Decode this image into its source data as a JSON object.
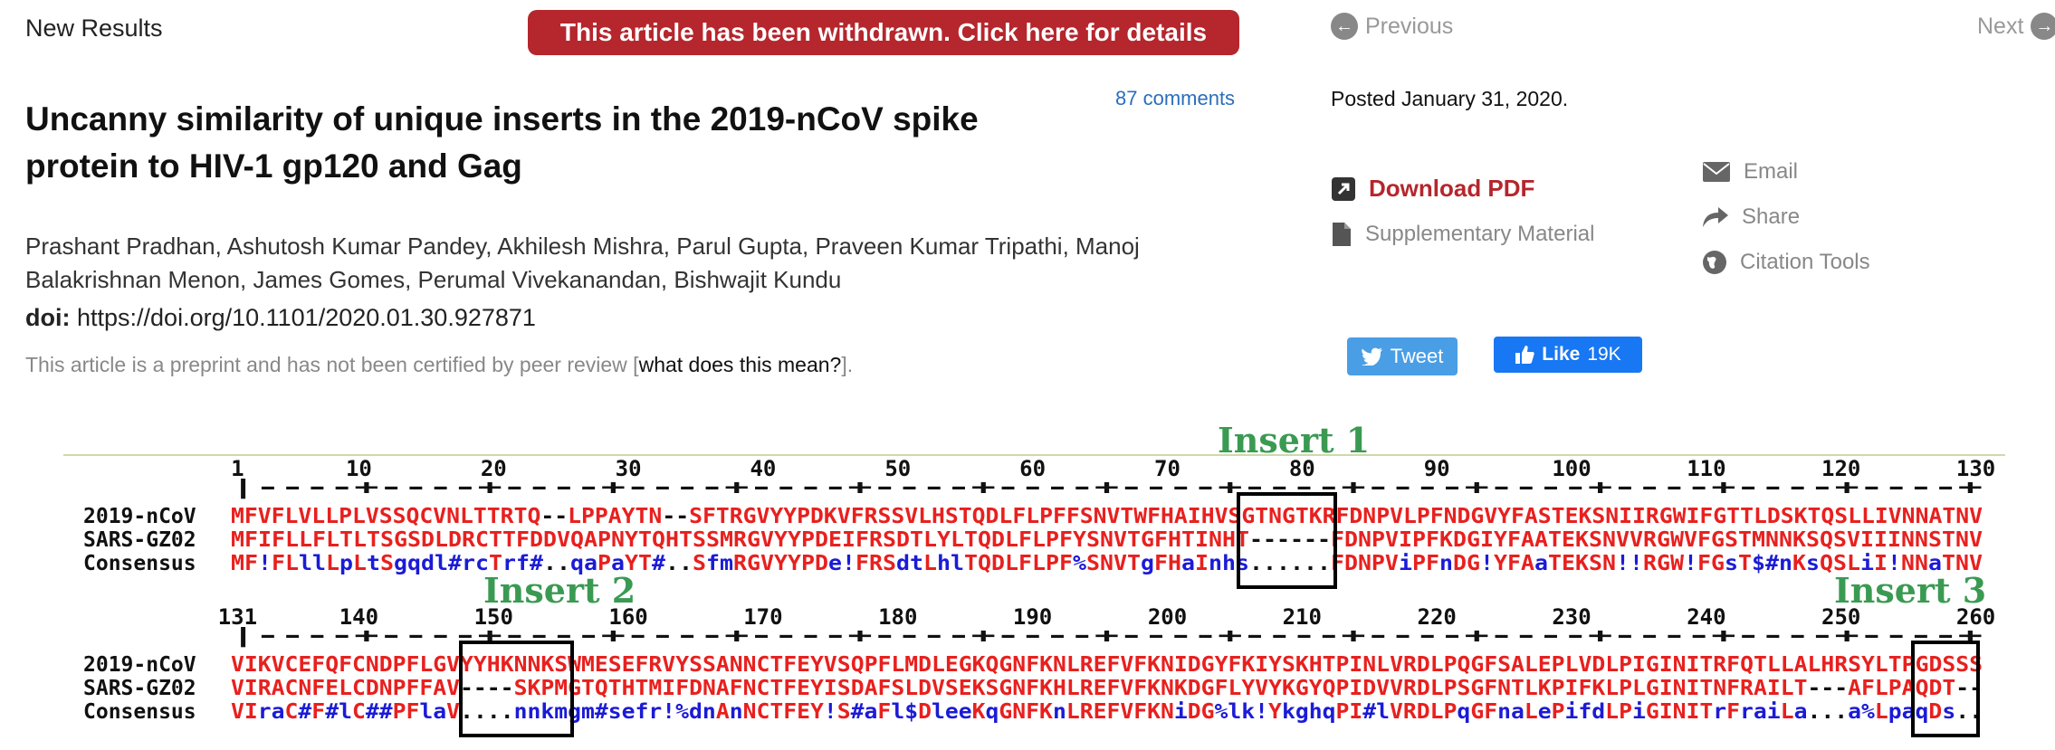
{
  "header": {
    "section_label": "New Results",
    "withdrawn_banner": "This article has been withdrawn. Click here for details",
    "comments": "87 comments",
    "nav_previous": "Previous",
    "nav_next": "Next"
  },
  "article": {
    "title": "Uncanny similarity of unique inserts in the 2019-nCoV spike protein to HIV-1 gp120 and Gag",
    "authors": "Prashant Pradhan, Ashutosh Kumar Pandey, Akhilesh Mishra, Parul Gupta, Praveen Kumar Tripathi, Manoj Balakrishnan Menon, James Gomes, Perumal Vivekanandan, Bishwajit Kundu",
    "doi_label": "doi:",
    "doi_value": "https://doi.org/10.1101/2020.01.30.927871",
    "preprint_note_pre": "This article is a preprint and has not been certified by peer review [",
    "preprint_note_link": "what does this mean?",
    "preprint_note_post": "]."
  },
  "sidebar": {
    "posted": "Posted January 31, 2020.",
    "download_pdf": "Download PDF",
    "supplementary": "Supplementary Material",
    "email": "Email",
    "share": "Share",
    "citation_tools": "Citation Tools",
    "tweet": "Tweet",
    "like": "Like",
    "like_count": "19K"
  },
  "figure": {
    "colors": {
      "red": "#e8201e",
      "blue": "#1b1bd6",
      "black": "#111111",
      "green": "#3a9a52"
    },
    "insert_labels": [
      "Insert 1",
      "Insert 2",
      "Insert 3"
    ],
    "block1": {
      "ruler_numbers": [
        "1",
        "10",
        "20",
        "30",
        "40",
        "50",
        "60",
        "70",
        "80",
        "90",
        "100",
        "110",
        "120",
        "130"
      ],
      "ruler_line": "|----+----+----+----+----+----+----+----+----+----+----+----+----+----+",
      "rows": [
        {
          "name": "2019-nCoV",
          "seq": "MFVFLVLLPLVSSQCVNLTTRTQ--LPPAYTN--SFTRGVYYPDKVFRSSVLHSTQDLFLPFFSNVTWFHAIHVSGTNGTKRFDNPVLPFNDGVYFASTEKSNIIRGWIFGTTLDSKTQSLLIVNNATNV"
        },
        {
          "name": "SARS-GZ02",
          "seq": "MFIFLLFLTLTSGSDLDRCTTFDDVQAPNYTQHTSSMRGVYYPDEIFRSDTLYLTQDLFLPFYSNVTGFHTINHT------FDNPVIPFKDGIYFAATEKSNVVRGWVFGSTMNNKSQSVIIINNSTNV"
        },
        {
          "name": "Consensus",
          "seq": "MF!FLllLpLtSgqdl#rcTrf#..qaPaYT#..SfmRGVYYPDe!FRSdtLhlTQDLFLPF%SNVTgFHaInhs......FDNPViPFnDG!YFAaTEKSN!!RGW!FGsT$#nKsQSLiI!NNaTNV"
        }
      ]
    },
    "block2": {
      "ruler_numbers": [
        "131",
        "140",
        "150",
        "160",
        "170",
        "180",
        "190",
        "200",
        "210",
        "220",
        "230",
        "240",
        "250",
        "260"
      ],
      "ruler_line": "|----+----+----+----+----+----+----+----+----+----+----+----+----+----+",
      "rows": [
        {
          "name": "2019-nCoV",
          "seq": "VIKVCEFQFCNDPFLGVYYHKNNKSWMESEFRVYSSANNCTFEYVSQPFLMDLEGKQGNFKNLREFVFKNIDGYFKIYSKHTPINLVRDLPQGFSALEPLVDLPIGINITRFQTLLALHRSYLTPGDSSS"
        },
        {
          "name": "SARS-GZ02",
          "seq": "VIRACNFELCDNPFFAV----SKPMGTQTHTMIFDNAFNCTFEYISDAFSLDVSEKSGNFKHLREFVFKNKDGFLYVYKGYQPIDVVRDLPSGFNTLKPIFKLPLGINITNFRAILT---AFLPAQDT--"
        },
        {
          "name": "Consensus",
          "seq": "VIraC#F#lC##PFlaV....nnkmgm#sefr!%dnAnNCTFEY!S#aFl$DleeKqGNFKnLREFVFKNiDG%lk!YkghqPI#lVRDLPqGFnaLePifdLPiGINITrFraiLa...a%LpaqDs.."
        }
      ]
    }
  }
}
